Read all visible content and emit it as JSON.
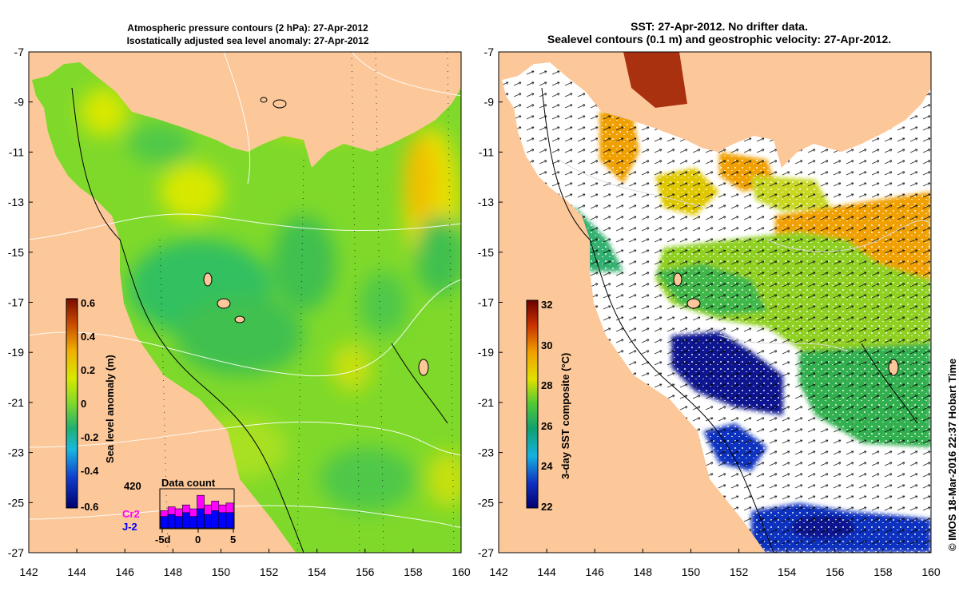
{
  "left_panel": {
    "title_line1": "Atmospheric pressure contours (2 hPa): 27-Apr-2012",
    "title_line2": "Isostatically adjusted sea level anomaly: 27-Apr-2012",
    "colorbar": {
      "label": "Sea level anomaly (m)",
      "ticks": [
        "0.6",
        "0.4",
        "0.2",
        "0",
        "-0.2",
        "-0.4",
        "-0.6"
      ]
    },
    "histogram": {
      "title": "Data count",
      "max_label": "420",
      "series1": "Cr2",
      "series2": "J-2",
      "x_ticks": [
        "-5d",
        "0",
        "5"
      ],
      "counts_total": [
        0.45,
        0.55,
        0.5,
        0.6,
        0.5,
        0.85,
        0.6,
        0.7,
        0.6,
        0.65
      ],
      "counts_j2": [
        0.3,
        0.35,
        0.3,
        0.4,
        0.3,
        0.5,
        0.35,
        0.45,
        0.4,
        0.4
      ],
      "colors": {
        "cr2": "#ff00ff",
        "j2": "#0000ff"
      }
    }
  },
  "right_panel": {
    "title_line1": "SST: 27-Apr-2012. No drifter data.",
    "title_line2": "Sealevel contours (0.1 m) and geostrophic velocity: 27-Apr-2012.",
    "colorbar": {
      "label": "3-day SST composite (°C)",
      "ticks": [
        "32",
        "30",
        "28",
        "26",
        "24",
        "22"
      ]
    }
  },
  "axes": {
    "lat_ticks": [
      "-7",
      "-9",
      "-11",
      "-13",
      "-15",
      "-17",
      "-19",
      "-21",
      "-23",
      "-25",
      "-27"
    ],
    "lon_ticks": [
      "142",
      "144",
      "146",
      "148",
      "150",
      "152",
      "154",
      "156",
      "158",
      "160"
    ]
  },
  "credit": "© IMOS 18-Mar-2016 22:37 Hobart Time",
  "colors": {
    "land": "#fcc89a",
    "ocean_base": "#7fd92a",
    "sst_cloud": "#ffffff"
  }
}
